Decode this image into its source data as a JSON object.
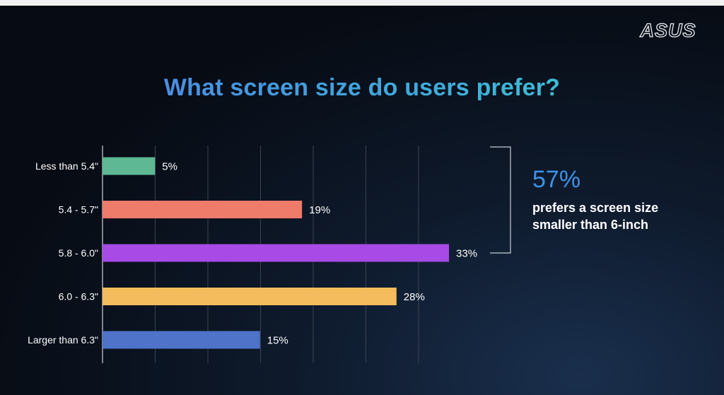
{
  "brand": "ASUS",
  "title": "What screen size do users prefer?",
  "highlight": {
    "percent": "57%",
    "text": "prefers a screen size smaller than 6-inch"
  },
  "chart_data": {
    "type": "bar",
    "orientation": "horizontal",
    "categories": [
      "Less than 5.4\"",
      "5.4 - 5.7\"",
      "5.8 - 6.0\"",
      "6.0 - 6.3\"",
      "Larger than 6.3\""
    ],
    "values": [
      5,
      19,
      33,
      28,
      15
    ],
    "value_labels": [
      "5%",
      "19%",
      "33%",
      "28%",
      "15%"
    ],
    "colors": [
      "#5db893",
      "#ef7b6b",
      "#a84ae6",
      "#f4bc5c",
      "#4e73c8"
    ],
    "xlim": [
      0,
      35
    ],
    "grid": true,
    "title": "What screen size do users prefer?"
  }
}
